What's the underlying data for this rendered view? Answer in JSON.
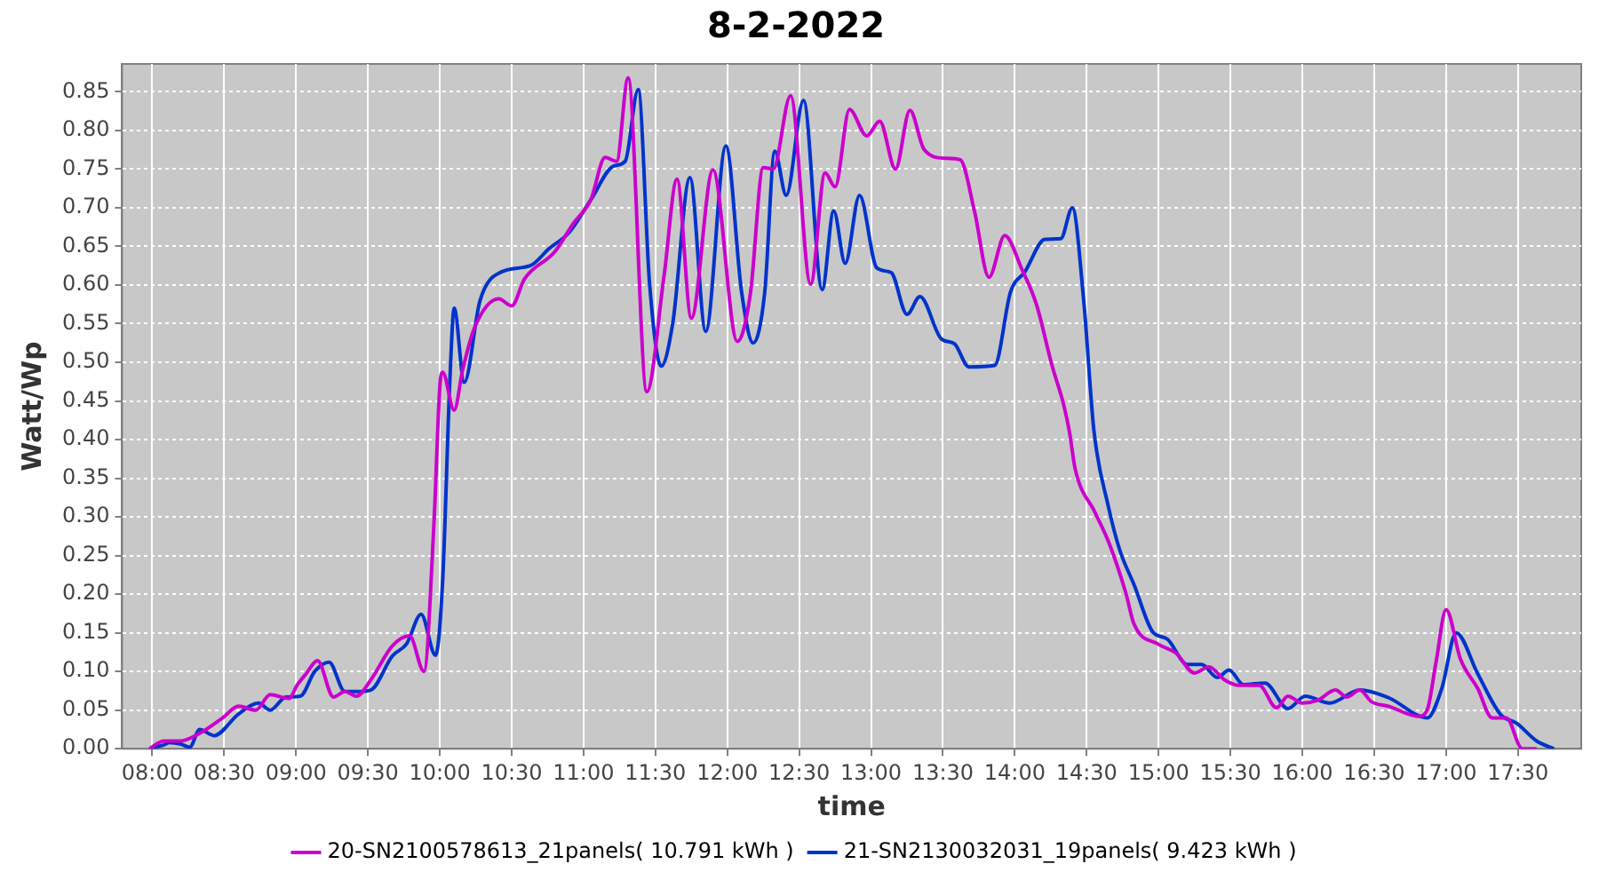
{
  "chart_data": {
    "type": "line",
    "title": "8-2-2022",
    "xlabel": "time",
    "ylabel": "Watt/Wp",
    "xlim": [
      7.79,
      17.94
    ],
    "ylim": [
      0,
      0.886
    ],
    "xticks": [
      {
        "value": 8,
        "label": "08:00"
      },
      {
        "value": 8.5,
        "label": "08:30"
      },
      {
        "value": 9,
        "label": "09:00"
      },
      {
        "value": 9.5,
        "label": "09:30"
      },
      {
        "value": 10,
        "label": "10:00"
      },
      {
        "value": 10.5,
        "label": "10:30"
      },
      {
        "value": 11,
        "label": "11:00"
      },
      {
        "value": 11.5,
        "label": "11:30"
      },
      {
        "value": 12,
        "label": "12:00"
      },
      {
        "value": 12.5,
        "label": "12:30"
      },
      {
        "value": 13,
        "label": "13:00"
      },
      {
        "value": 13.5,
        "label": "13:30"
      },
      {
        "value": 14,
        "label": "14:00"
      },
      {
        "value": 14.5,
        "label": "14:30"
      },
      {
        "value": 15,
        "label": "15:00"
      },
      {
        "value": 15.5,
        "label": "15:30"
      },
      {
        "value": 16,
        "label": "16:00"
      },
      {
        "value": 16.5,
        "label": "16:30"
      },
      {
        "value": 17,
        "label": "17:00"
      },
      {
        "value": 17.5,
        "label": "17:30"
      }
    ],
    "yticks": [
      {
        "value": 0,
        "label": "0.00"
      },
      {
        "value": 0.05,
        "label": "0.05"
      },
      {
        "value": 0.1,
        "label": "0.10"
      },
      {
        "value": 0.15,
        "label": "0.15"
      },
      {
        "value": 0.2,
        "label": "0.20"
      },
      {
        "value": 0.25,
        "label": "0.25"
      },
      {
        "value": 0.3,
        "label": "0.30"
      },
      {
        "value": 0.35,
        "label": "0.35"
      },
      {
        "value": 0.4,
        "label": "0.40"
      },
      {
        "value": 0.45,
        "label": "0.45"
      },
      {
        "value": 0.5,
        "label": "0.50"
      },
      {
        "value": 0.55,
        "label": "0.55"
      },
      {
        "value": 0.6,
        "label": "0.60"
      },
      {
        "value": 0.65,
        "label": "0.65"
      },
      {
        "value": 0.7,
        "label": "0.70"
      },
      {
        "value": 0.75,
        "label": "0.75"
      },
      {
        "value": 0.8,
        "label": "0.80"
      },
      {
        "value": 0.85,
        "label": "0.85"
      }
    ],
    "grid": true,
    "legend": "bottom",
    "marker": "none",
    "line_style": "solid",
    "series": [
      {
        "name": "20-SN2100578613_21panels( 10.791 kWh )",
        "color": "#cc00cc",
        "x": [
          7.98,
          8.08,
          8.19,
          8.33,
          8.49,
          8.6,
          8.72,
          8.82,
          8.95,
          9.01,
          9.07,
          9.15,
          9.26,
          9.34,
          9.42,
          9.52,
          9.67,
          9.79,
          9.89,
          9.96,
          10.0,
          10.02,
          10.1,
          10.16,
          10.24,
          10.41,
          10.5,
          10.59,
          10.8,
          10.93,
          11.05,
          11.15,
          11.23,
          11.31,
          11.44,
          11.56,
          11.65,
          11.75,
          11.9,
          12.07,
          12.16,
          12.25,
          12.32,
          12.44,
          12.58,
          12.68,
          12.75,
          12.85,
          12.97,
          13.06,
          13.17,
          13.27,
          13.37,
          13.51,
          13.62,
          13.72,
          13.82,
          13.93,
          14.05,
          14.15,
          14.26,
          14.34,
          14.38,
          14.42,
          14.56,
          14.66,
          14.77,
          14.83,
          15.0,
          15.12,
          15.25,
          15.35,
          15.46,
          15.56,
          15.7,
          15.82,
          15.9,
          16.0,
          16.11,
          16.23,
          16.31,
          16.4,
          16.48,
          16.6,
          16.81,
          16.87,
          16.93,
          17.0,
          17.1,
          17.22,
          17.32,
          17.42,
          17.53,
          17.63
        ],
        "values": [
          0.0,
          0.01,
          0.01,
          0.02,
          0.04,
          0.055,
          0.05,
          0.07,
          0.065,
          0.083,
          0.097,
          0.114,
          0.067,
          0.074,
          0.068,
          0.089,
          0.133,
          0.146,
          0.1,
          0.294,
          0.468,
          0.487,
          0.438,
          0.491,
          0.544,
          0.582,
          0.573,
          0.608,
          0.643,
          0.68,
          0.71,
          0.765,
          0.76,
          0.868,
          0.462,
          0.612,
          0.737,
          0.557,
          0.749,
          0.527,
          0.588,
          0.752,
          0.75,
          0.845,
          0.601,
          0.745,
          0.727,
          0.827,
          0.793,
          0.812,
          0.75,
          0.826,
          0.775,
          0.764,
          0.762,
          0.695,
          0.61,
          0.664,
          0.62,
          0.575,
          0.495,
          0.445,
          0.41,
          0.362,
          0.305,
          0.264,
          0.203,
          0.161,
          0.135,
          0.124,
          0.098,
          0.106,
          0.089,
          0.082,
          0.082,
          0.053,
          0.068,
          0.059,
          0.063,
          0.076,
          0.067,
          0.076,
          0.061,
          0.055,
          0.042,
          0.051,
          0.112,
          0.18,
          0.116,
          0.078,
          0.04,
          0.04,
          0.0,
          0.0
        ]
      },
      {
        "name": "21-SN2130032031_19panels( 9.423 kWh )",
        "color": "#0033cc",
        "x": [
          7.98,
          8.08,
          8.12,
          8.2,
          8.26,
          8.33,
          8.43,
          8.6,
          8.74,
          8.82,
          8.93,
          9.03,
          9.13,
          9.23,
          9.34,
          9.42,
          9.52,
          9.67,
          9.77,
          9.87,
          9.97,
          10.02,
          10.07,
          10.1,
          10.17,
          10.28,
          10.43,
          10.63,
          10.76,
          10.9,
          11.05,
          11.21,
          11.29,
          11.38,
          11.46,
          11.54,
          11.62,
          11.74,
          11.85,
          11.99,
          12.1,
          12.18,
          12.26,
          12.33,
          12.41,
          12.53,
          12.66,
          12.74,
          12.82,
          12.92,
          13.04,
          13.14,
          13.25,
          13.34,
          13.49,
          13.58,
          13.68,
          13.86,
          13.97,
          14.07,
          14.21,
          14.32,
          14.4,
          14.48,
          14.55,
          14.65,
          14.73,
          14.83,
          14.96,
          15.06,
          15.2,
          15.3,
          15.41,
          15.49,
          15.59,
          15.74,
          15.9,
          16.02,
          16.19,
          16.4,
          16.6,
          16.87,
          16.97,
          17.07,
          17.22,
          17.38,
          17.49,
          17.63,
          17.75
        ],
        "values": [
          0.0,
          0.005,
          0.008,
          0.006,
          0.002,
          0.025,
          0.017,
          0.045,
          0.059,
          0.05,
          0.067,
          0.068,
          0.1,
          0.112,
          0.074,
          0.074,
          0.076,
          0.12,
          0.136,
          0.174,
          0.121,
          0.218,
          0.476,
          0.57,
          0.474,
          0.58,
          0.617,
          0.625,
          0.647,
          0.668,
          0.71,
          0.754,
          0.76,
          0.853,
          0.6,
          0.495,
          0.55,
          0.739,
          0.54,
          0.78,
          0.59,
          0.525,
          0.59,
          0.773,
          0.716,
          0.839,
          0.594,
          0.696,
          0.628,
          0.716,
          0.622,
          0.616,
          0.562,
          0.585,
          0.53,
          0.524,
          0.494,
          0.496,
          0.591,
          0.617,
          0.659,
          0.66,
          0.7,
          0.578,
          0.412,
          0.314,
          0.257,
          0.212,
          0.151,
          0.142,
          0.109,
          0.109,
          0.092,
          0.102,
          0.083,
          0.085,
          0.052,
          0.068,
          0.059,
          0.076,
          0.066,
          0.04,
          0.078,
          0.15,
          0.097,
          0.044,
          0.033,
          0.01,
          0.0
        ]
      }
    ]
  }
}
